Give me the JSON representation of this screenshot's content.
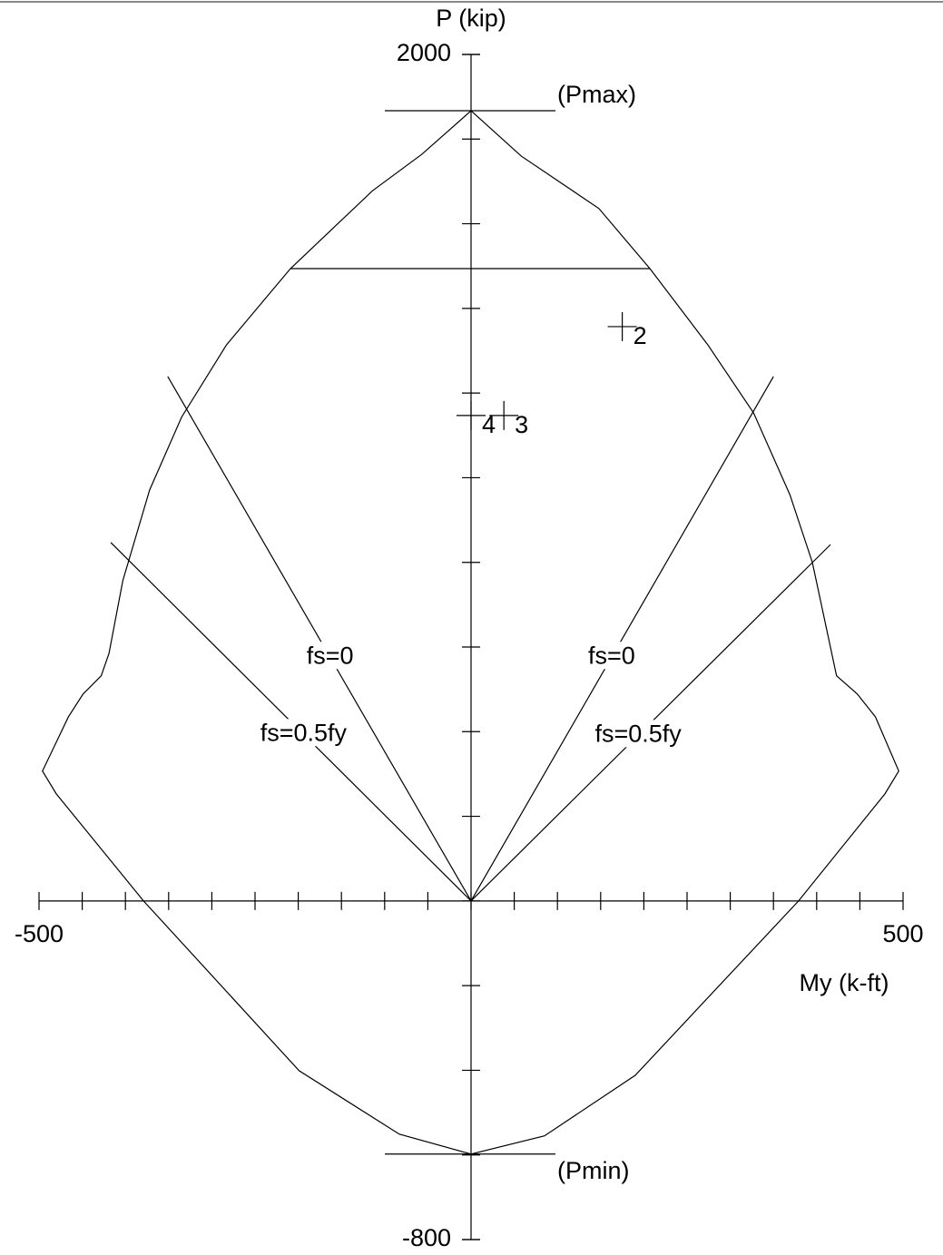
{
  "chart_data": {
    "type": "interaction",
    "xlabel": "My (k-ft)",
    "ylabel": "P (kip)",
    "xlim": [
      -500,
      500
    ],
    "ylim": [
      -800,
      2000
    ],
    "xticks": [
      -500,
      500
    ],
    "yticks": [
      2000,
      -800
    ],
    "x_minor_step": 50,
    "y_minor_step": 200,
    "curve": {
      "x": [
        0,
        58,
        148,
        207,
        274,
        327,
        369,
        395,
        413,
        423,
        447,
        468,
        495,
        479,
        379,
        190,
        85,
        0,
        -83,
        -199,
        -379,
        -480,
        -496,
        -466,
        -449,
        -428,
        -419,
        -403,
        -372,
        -335,
        -283,
        -209,
        -114,
        -57,
        0
      ],
      "y": [
        1867,
        1760,
        1636,
        1494,
        1314,
        1153,
        960,
        800,
        628,
        532,
        489,
        435,
        307,
        253,
        0,
        -412,
        -555,
        -598,
        -551,
        -401,
        0,
        253,
        307,
        435,
        489,
        532,
        585,
        757,
        971,
        1143,
        1314,
        1494,
        1678,
        1764,
        1867
      ]
    },
    "pmax": {
      "label": "(Pmax)",
      "value": 1867
    },
    "pmin": {
      "label": "(Pmin)",
      "value": -598
    },
    "cap": {
      "value": 1494,
      "x": [
        -209,
        207
      ]
    },
    "stress_lines": [
      {
        "label": "fs=0",
        "x": [
          0,
          -351
        ],
        "y": [
          0,
          1239
        ]
      },
      {
        "label": "fs=0",
        "x": [
          0,
          350
        ],
        "y": [
          0,
          1239
        ]
      },
      {
        "label": "fs=0.5fy",
        "x": [
          0,
          -417
        ],
        "y": [
          0,
          847
        ]
      },
      {
        "label": "fs=0.5fy",
        "x": [
          0,
          416
        ],
        "y": [
          0,
          842
        ]
      }
    ],
    "points": [
      {
        "label": "2",
        "x": 175,
        "y": 1357
      },
      {
        "label": "3",
        "x": 38,
        "y": 1147
      },
      {
        "label": "4",
        "x": 0,
        "y": 1147
      }
    ],
    "point_color": "#ff0000"
  }
}
